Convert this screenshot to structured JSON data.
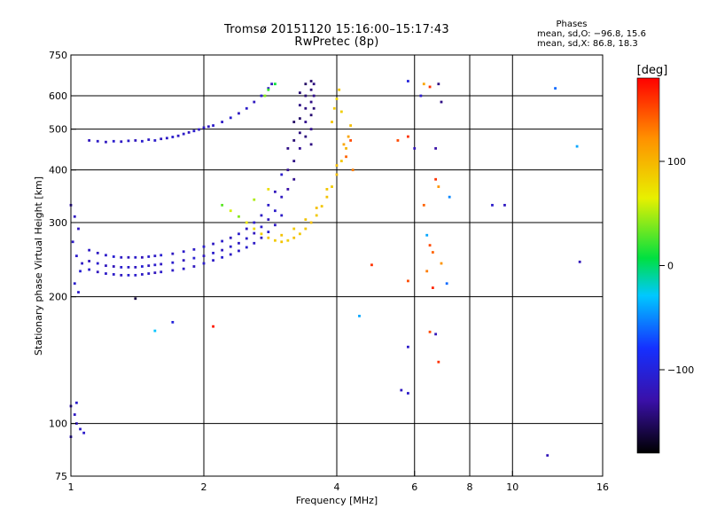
{
  "title": {
    "line1": "Tromsø 20151120 15:16:00–15:17:43",
    "line2": "RwPretec (8p)"
  },
  "phase_stats": {
    "title": "Phases",
    "o_line": "mean, sd,O: −96.8, 15.6",
    "x_line": "mean, sd,X:  86.8, 18.3"
  },
  "colors": {
    "trace_blue": "#1f3fe0",
    "trace_purple": "#3a18c8",
    "trace_cyan": "#00b8e8",
    "trace_green": "#38d24a",
    "trace_yellow": "#e8e81a",
    "trace_orange": "#ff9a10",
    "colorbar_stops": [
      "#000000",
      "#3a10a8",
      "#1530ff",
      "#00c8ff",
      "#00e040",
      "#e8f000",
      "#ff9000",
      "#ff0000"
    ]
  },
  "chart_data": {
    "type": "scatter",
    "title": "Tromsø 20151120 15:16:00–15:17:43",
    "subtitle": "RwPretec (8p)",
    "xlabel": "Frequency [MHz]",
    "ylabel": "Stationary phase Virtual Height [km]",
    "xscale": "log",
    "yscale": "log",
    "xlim": [
      1,
      16
    ],
    "ylim": [
      75,
      750
    ],
    "xticks": [
      1,
      2,
      4,
      6,
      8,
      10,
      16
    ],
    "xtick_labels": [
      "1",
      "2",
      "4",
      "6",
      "8",
      "10",
      "16"
    ],
    "xgrid": [
      2,
      4,
      6,
      8,
      10
    ],
    "yticks": [
      75,
      100,
      200,
      300,
      400,
      500,
      600,
      750
    ],
    "ytick_labels": [
      "75",
      "100",
      "200",
      "300",
      "400",
      "500",
      "600",
      "750"
    ],
    "ygrid": [
      100,
      200,
      300,
      400,
      500,
      600
    ],
    "grid": true,
    "colorbar": {
      "label": "[deg]",
      "range": [
        -180,
        180
      ],
      "ticks": [
        -100,
        0,
        100
      ],
      "tick_labels": [
        "−100",
        "0",
        "100"
      ]
    },
    "series": [
      {
        "mode": "O",
        "points": [
          [
            1.0,
            330,
            -120
          ],
          [
            1.02,
            310,
            -115
          ],
          [
            1.04,
            290,
            -118
          ],
          [
            1.01,
            270,
            -112
          ],
          [
            1.03,
            250,
            -110
          ],
          [
            1.05,
            230,
            -105
          ],
          [
            1.02,
            215,
            -108
          ],
          [
            1.04,
            205,
            -110
          ],
          [
            1.06,
            240,
            -113
          ],
          [
            1.1,
            258,
            -112
          ],
          [
            1.1,
            243,
            -118
          ],
          [
            1.1,
            232,
            -108
          ],
          [
            1.15,
            254,
            -114
          ],
          [
            1.15,
            240,
            -109
          ],
          [
            1.15,
            229,
            -117
          ],
          [
            1.2,
            251,
            -110
          ],
          [
            1.2,
            237,
            -116
          ],
          [
            1.2,
            227,
            -112
          ],
          [
            1.25,
            249,
            -106
          ],
          [
            1.25,
            236,
            -119
          ],
          [
            1.25,
            226,
            -111
          ],
          [
            1.3,
            248,
            -113
          ],
          [
            1.3,
            235,
            -108
          ],
          [
            1.3,
            225,
            -115
          ],
          [
            1.35,
            248,
            -117
          ],
          [
            1.35,
            235,
            -110
          ],
          [
            1.35,
            225,
            -106
          ],
          [
            1.4,
            248,
            -111
          ],
          [
            1.4,
            235,
            -115
          ],
          [
            1.4,
            225,
            -109
          ],
          [
            1.45,
            248,
            -120
          ],
          [
            1.45,
            236,
            -104
          ],
          [
            1.45,
            226,
            -113
          ],
          [
            1.5,
            249,
            -108
          ],
          [
            1.5,
            237,
            -116
          ],
          [
            1.5,
            227,
            -112
          ],
          [
            1.55,
            250,
            -112
          ],
          [
            1.55,
            238,
            -109
          ],
          [
            1.55,
            228,
            -118
          ],
          [
            1.6,
            251,
            -106
          ],
          [
            1.6,
            239,
            -114
          ],
          [
            1.6,
            229,
            -110
          ],
          [
            1.7,
            253,
            -115
          ],
          [
            1.7,
            241,
            -108
          ],
          [
            1.7,
            231,
            -112
          ],
          [
            1.8,
            256,
            -110
          ],
          [
            1.8,
            244,
            -117
          ],
          [
            1.8,
            233,
            -113
          ],
          [
            1.9,
            259,
            -113
          ],
          [
            1.9,
            247,
            -106
          ],
          [
            1.9,
            236,
            -116
          ],
          [
            2.0,
            263,
            -108
          ],
          [
            2.0,
            250,
            -115
          ],
          [
            2.0,
            240,
            -110
          ],
          [
            2.1,
            267,
            -114
          ],
          [
            2.1,
            254,
            -109
          ],
          [
            2.1,
            244,
            -112
          ],
          [
            2.2,
            271,
            -111
          ],
          [
            2.2,
            258,
            -116
          ],
          [
            2.2,
            248,
            -107
          ],
          [
            2.3,
            276,
            -117
          ],
          [
            2.3,
            263,
            -110
          ],
          [
            2.3,
            252,
            -113
          ],
          [
            2.4,
            282,
            -109
          ],
          [
            2.4,
            268,
            -114
          ],
          [
            2.4,
            257,
            -112
          ],
          [
            2.5,
            290,
            -115
          ],
          [
            2.5,
            275,
            -111
          ],
          [
            2.5,
            262,
            -108
          ],
          [
            2.6,
            300,
            -110
          ],
          [
            2.6,
            283,
            -117
          ],
          [
            2.6,
            268,
            -112
          ],
          [
            2.7,
            312,
            -113
          ],
          [
            2.7,
            293,
            -109
          ],
          [
            2.7,
            276,
            -115
          ],
          [
            2.8,
            330,
            -111
          ],
          [
            2.8,
            305,
            -116
          ],
          [
            2.8,
            285,
            -108
          ],
          [
            2.9,
            355,
            -118
          ],
          [
            2.9,
            320,
            -110
          ],
          [
            2.9,
            296,
            -113
          ],
          [
            3.0,
            390,
            -109
          ],
          [
            3.0,
            345,
            -115
          ],
          [
            3.0,
            312,
            -111
          ],
          [
            3.1,
            450,
            -140
          ],
          [
            3.1,
            400,
            -135
          ],
          [
            3.1,
            360,
            -130
          ],
          [
            3.2,
            520,
            -150
          ],
          [
            3.2,
            470,
            -145
          ],
          [
            3.2,
            420,
            -140
          ],
          [
            3.2,
            380,
            -138
          ],
          [
            3.3,
            610,
            -145
          ],
          [
            3.3,
            570,
            -140
          ],
          [
            3.3,
            530,
            -148
          ],
          [
            3.3,
            490,
            -142
          ],
          [
            3.3,
            450,
            -136
          ],
          [
            3.4,
            640,
            -150
          ],
          [
            3.4,
            600,
            -146
          ],
          [
            3.4,
            560,
            -141
          ],
          [
            3.4,
            520,
            -138
          ],
          [
            3.4,
            480,
            -143
          ],
          [
            3.5,
            650,
            -148
          ],
          [
            3.5,
            620,
            -144
          ],
          [
            3.5,
            580,
            -140
          ],
          [
            3.5,
            540,
            -146
          ],
          [
            3.5,
            500,
            -137
          ],
          [
            3.5,
            460,
            -141
          ],
          [
            3.55,
            640,
            -142
          ],
          [
            3.55,
            600,
            -138
          ],
          [
            3.55,
            560,
            -144
          ],
          [
            1.1,
            470,
            -118
          ],
          [
            1.15,
            468,
            -112
          ],
          [
            1.2,
            466,
            -116
          ],
          [
            1.25,
            468,
            -109
          ],
          [
            1.3,
            467,
            -114
          ],
          [
            1.35,
            469,
            -111
          ],
          [
            1.4,
            470,
            -117
          ],
          [
            1.45,
            468,
            -108
          ],
          [
            1.5,
            472,
            -113
          ],
          [
            1.55,
            470,
            -110
          ],
          [
            1.6,
            474,
            -116
          ],
          [
            1.65,
            476,
            -112
          ],
          [
            1.7,
            479,
            -108
          ],
          [
            1.75,
            482,
            -115
          ],
          [
            1.8,
            487,
            -111
          ],
          [
            1.85,
            491,
            -117
          ],
          [
            1.9,
            495,
            -109
          ],
          [
            1.95,
            499,
            -114
          ],
          [
            2.0,
            504,
            -112
          ],
          [
            2.05,
            507,
            -116
          ],
          [
            2.1,
            510,
            -110
          ],
          [
            2.2,
            520,
            -113
          ],
          [
            2.3,
            532,
            -108
          ],
          [
            2.4,
            545,
            -115
          ],
          [
            2.5,
            560,
            -111
          ],
          [
            2.6,
            580,
            -116
          ],
          [
            2.7,
            600,
            -109
          ],
          [
            2.8,
            625,
            -113
          ],
          [
            2.85,
            640,
            -118
          ],
          [
            1.0,
            110,
            -120
          ],
          [
            1.02,
            105,
            -115
          ],
          [
            1.03,
            100,
            -118
          ],
          [
            1.05,
            97,
            -112
          ],
          [
            1.07,
            95,
            -110
          ],
          [
            1.03,
            112,
            -108
          ],
          [
            1.0,
            93,
            -116
          ]
        ]
      },
      {
        "mode": "X",
        "points": [
          [
            2.5,
            300,
            70
          ],
          [
            2.6,
            290,
            80
          ],
          [
            2.7,
            282,
            85
          ],
          [
            2.8,
            276,
            90
          ],
          [
            2.9,
            272,
            88
          ],
          [
            3.0,
            270,
            92
          ],
          [
            3.1,
            272,
            86
          ],
          [
            3.2,
            276,
            94
          ],
          [
            3.3,
            282,
            89
          ],
          [
            3.4,
            290,
            91
          ],
          [
            3.5,
            300,
            95
          ],
          [
            3.6,
            312,
            88
          ],
          [
            3.7,
            328,
            90
          ],
          [
            3.8,
            345,
            93
          ],
          [
            3.9,
            365,
            87
          ],
          [
            4.0,
            390,
            95
          ],
          [
            4.1,
            420,
            90
          ],
          [
            4.2,
            450,
            100
          ],
          [
            4.25,
            480,
            110
          ],
          [
            4.3,
            510,
            95
          ],
          [
            4.1,
            550,
            85
          ],
          [
            4.0,
            590,
            80
          ],
          [
            4.05,
            620,
            90
          ],
          [
            3.95,
            560,
            88
          ],
          [
            3.9,
            520,
            92
          ],
          [
            3.0,
            280,
            93
          ],
          [
            3.2,
            290,
            88
          ],
          [
            3.4,
            305,
            91
          ],
          [
            3.6,
            325,
            94
          ],
          [
            3.8,
            360,
            90
          ],
          [
            4.0,
            410,
            96
          ],
          [
            4.15,
            460,
            110
          ],
          [
            4.2,
            430,
            140
          ],
          [
            4.3,
            470,
            150
          ],
          [
            4.35,
            400,
            130
          ],
          [
            2.3,
            320,
            60
          ],
          [
            2.4,
            310,
            40
          ],
          [
            2.2,
            330,
            30
          ],
          [
            2.6,
            340,
            50
          ],
          [
            2.8,
            360,
            75
          ],
          [
            2.9,
            640,
            10
          ],
          [
            2.8,
            620,
            20
          ],
          [
            2.75,
            600,
            40
          ]
        ]
      },
      {
        "mode": "scatter",
        "points": [
          [
            5.8,
            650,
            -100
          ],
          [
            6.3,
            640,
            110
          ],
          [
            6.5,
            630,
            160
          ],
          [
            6.8,
            640,
            -140
          ],
          [
            6.2,
            600,
            -110
          ],
          [
            6.9,
            580,
            -140
          ],
          [
            5.8,
            480,
            160
          ],
          [
            5.5,
            470,
            150
          ],
          [
            6.7,
            450,
            -130
          ],
          [
            6.0,
            450,
            -120
          ],
          [
            6.7,
            380,
            160
          ],
          [
            6.8,
            365,
            120
          ],
          [
            7.2,
            345,
            -50
          ],
          [
            6.3,
            330,
            140
          ],
          [
            9.0,
            330,
            -110
          ],
          [
            9.6,
            330,
            -115
          ],
          [
            6.4,
            280,
            -40
          ],
          [
            6.5,
            265,
            150
          ],
          [
            6.6,
            255,
            140
          ],
          [
            6.9,
            240,
            120
          ],
          [
            6.4,
            230,
            130
          ],
          [
            7.1,
            215,
            -60
          ],
          [
            6.6,
            210,
            165
          ],
          [
            5.8,
            218,
            150
          ],
          [
            4.8,
            238,
            160
          ],
          [
            4.5,
            180,
            -40
          ],
          [
            6.5,
            165,
            150
          ],
          [
            6.7,
            163,
            -120
          ],
          [
            6.8,
            140,
            160
          ],
          [
            5.8,
            152,
            -110
          ],
          [
            5.6,
            120,
            -115
          ],
          [
            5.8,
            118,
            -110
          ],
          [
            12.5,
            625,
            -60
          ],
          [
            14.0,
            455,
            -40
          ],
          [
            14.2,
            242,
            -120
          ],
          [
            12.0,
            84,
            -120
          ],
          [
            1.4,
            198,
            -160
          ],
          [
            1.55,
            166,
            -30
          ],
          [
            1.7,
            174,
            -100
          ],
          [
            2.1,
            170,
            170
          ]
        ]
      }
    ]
  }
}
